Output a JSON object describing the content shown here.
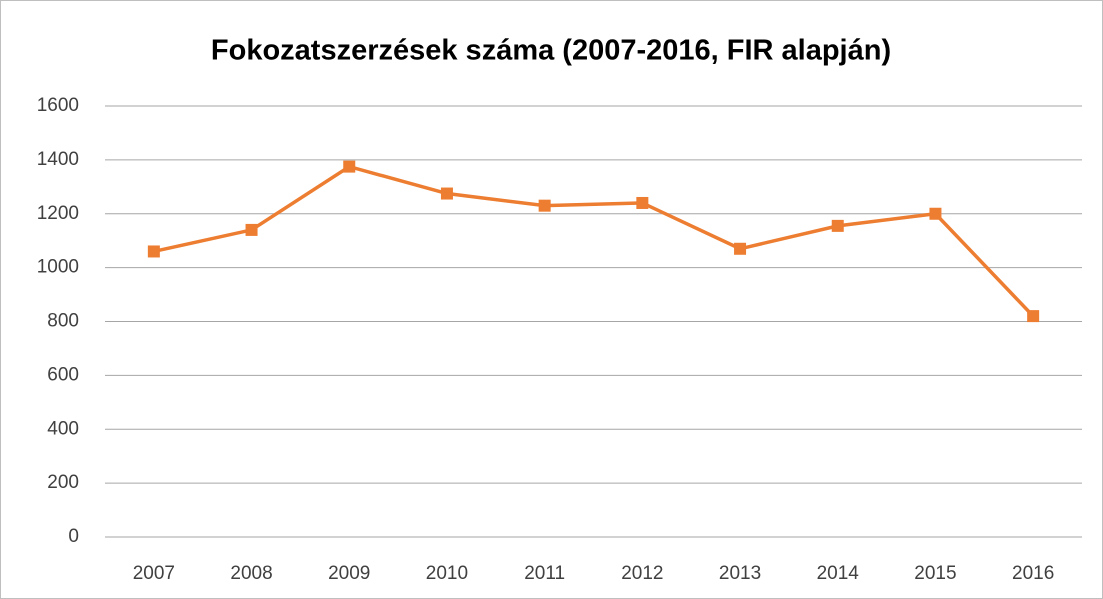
{
  "chart_data": {
    "type": "line",
    "title": "Fokozatszerzések száma (2007-2016, FIR alapján)",
    "categories": [
      "2007",
      "2008",
      "2009",
      "2010",
      "2011",
      "2012",
      "2013",
      "2014",
      "2015",
      "2016"
    ],
    "series": [
      {
        "name": "Fokozatszerzések",
        "color": "#ed7d31",
        "values": [
          1060,
          1140,
          1375,
          1275,
          1230,
          1240,
          1070,
          1155,
          1200,
          820
        ]
      }
    ],
    "ylim": [
      0,
      1600
    ],
    "yticks": [
      0,
      200,
      400,
      600,
      800,
      1000,
      1200,
      1400,
      1600
    ],
    "grid": true
  }
}
